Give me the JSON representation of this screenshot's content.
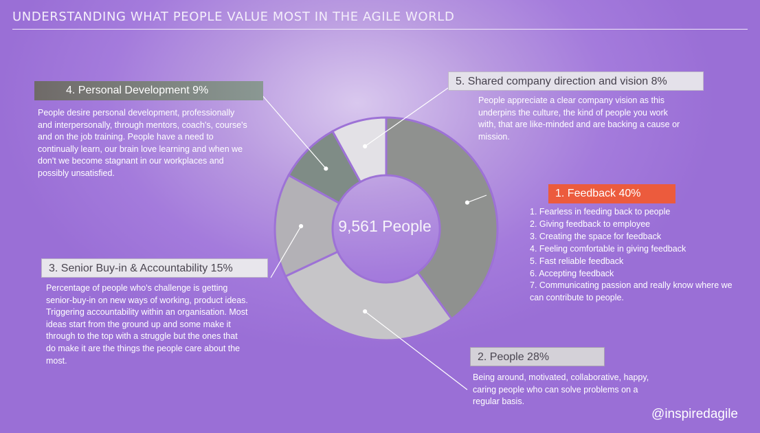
{
  "header": {
    "title": "UNDERSTANDING WHAT PEOPLE VALUE MOST IN THE AGILE WORLD"
  },
  "chart_data": {
    "type": "pie",
    "center_label": "9,561 People",
    "slices": [
      {
        "label": "Feedback",
        "value": 40,
        "color": "#8f918f"
      },
      {
        "label": "People",
        "value": 28,
        "color": "#c6c5c8"
      },
      {
        "label": "Senior Buy-in & Accountability",
        "value": 15,
        "color": "#b3b1b6"
      },
      {
        "label": "Personal Development",
        "value": 9,
        "color": "#7f8c86"
      },
      {
        "label": "Shared company direction and vision",
        "value": 8,
        "color": "#e3e1e6"
      }
    ]
  },
  "sections": {
    "personal_development": {
      "heading": "4. Personal Development  9%",
      "text": "People desire personal development, professionally\nand interpersonally, through mentors, coach's, course's\nand on the job training. People have a need to\ncontinually learn, our brain love learning and when we\ndon't we become stagnant in our workplaces and\npossibly unsatisfied."
    },
    "shared_direction": {
      "heading": "5. Shared company direction and vision   8%",
      "text": "People appreciate a clear company vision as this\nunderpins the culture, the kind of people you work\nwith, that are like-minded and are backing a cause or\nmission."
    },
    "feedback": {
      "heading": "1. Feedback  40%",
      "items": [
        "1. Fearless in feeding back to people",
        "2. Giving feedback to employee",
        "3. Creating the space for feedback",
        "4. Feeling comfortable in giving feedback",
        "5. Fast reliable feedback",
        "6. Accepting feedback",
        "7. Communicating passion and really know where we\ncan contribute to people."
      ]
    },
    "senior_buyin": {
      "heading": "3. Senior Buy-in & Accountability    15%",
      "text": "Percentage of people who's challenge is getting\nsenior-buy-in on new ways of working, product ideas.\nTriggering accountability within an organisation.  Most\nideas start from the ground up and some make it\nthrough to the top with a struggle but the ones that\ndo make it are the things the people care about the\nmost."
    },
    "people": {
      "heading": "2. People   28%",
      "text": "Being around, motivated, collaborative, happy,\ncaring people who can solve problems on a\nregular basis."
    }
  },
  "footer": {
    "handle": "@inspiredagile"
  }
}
